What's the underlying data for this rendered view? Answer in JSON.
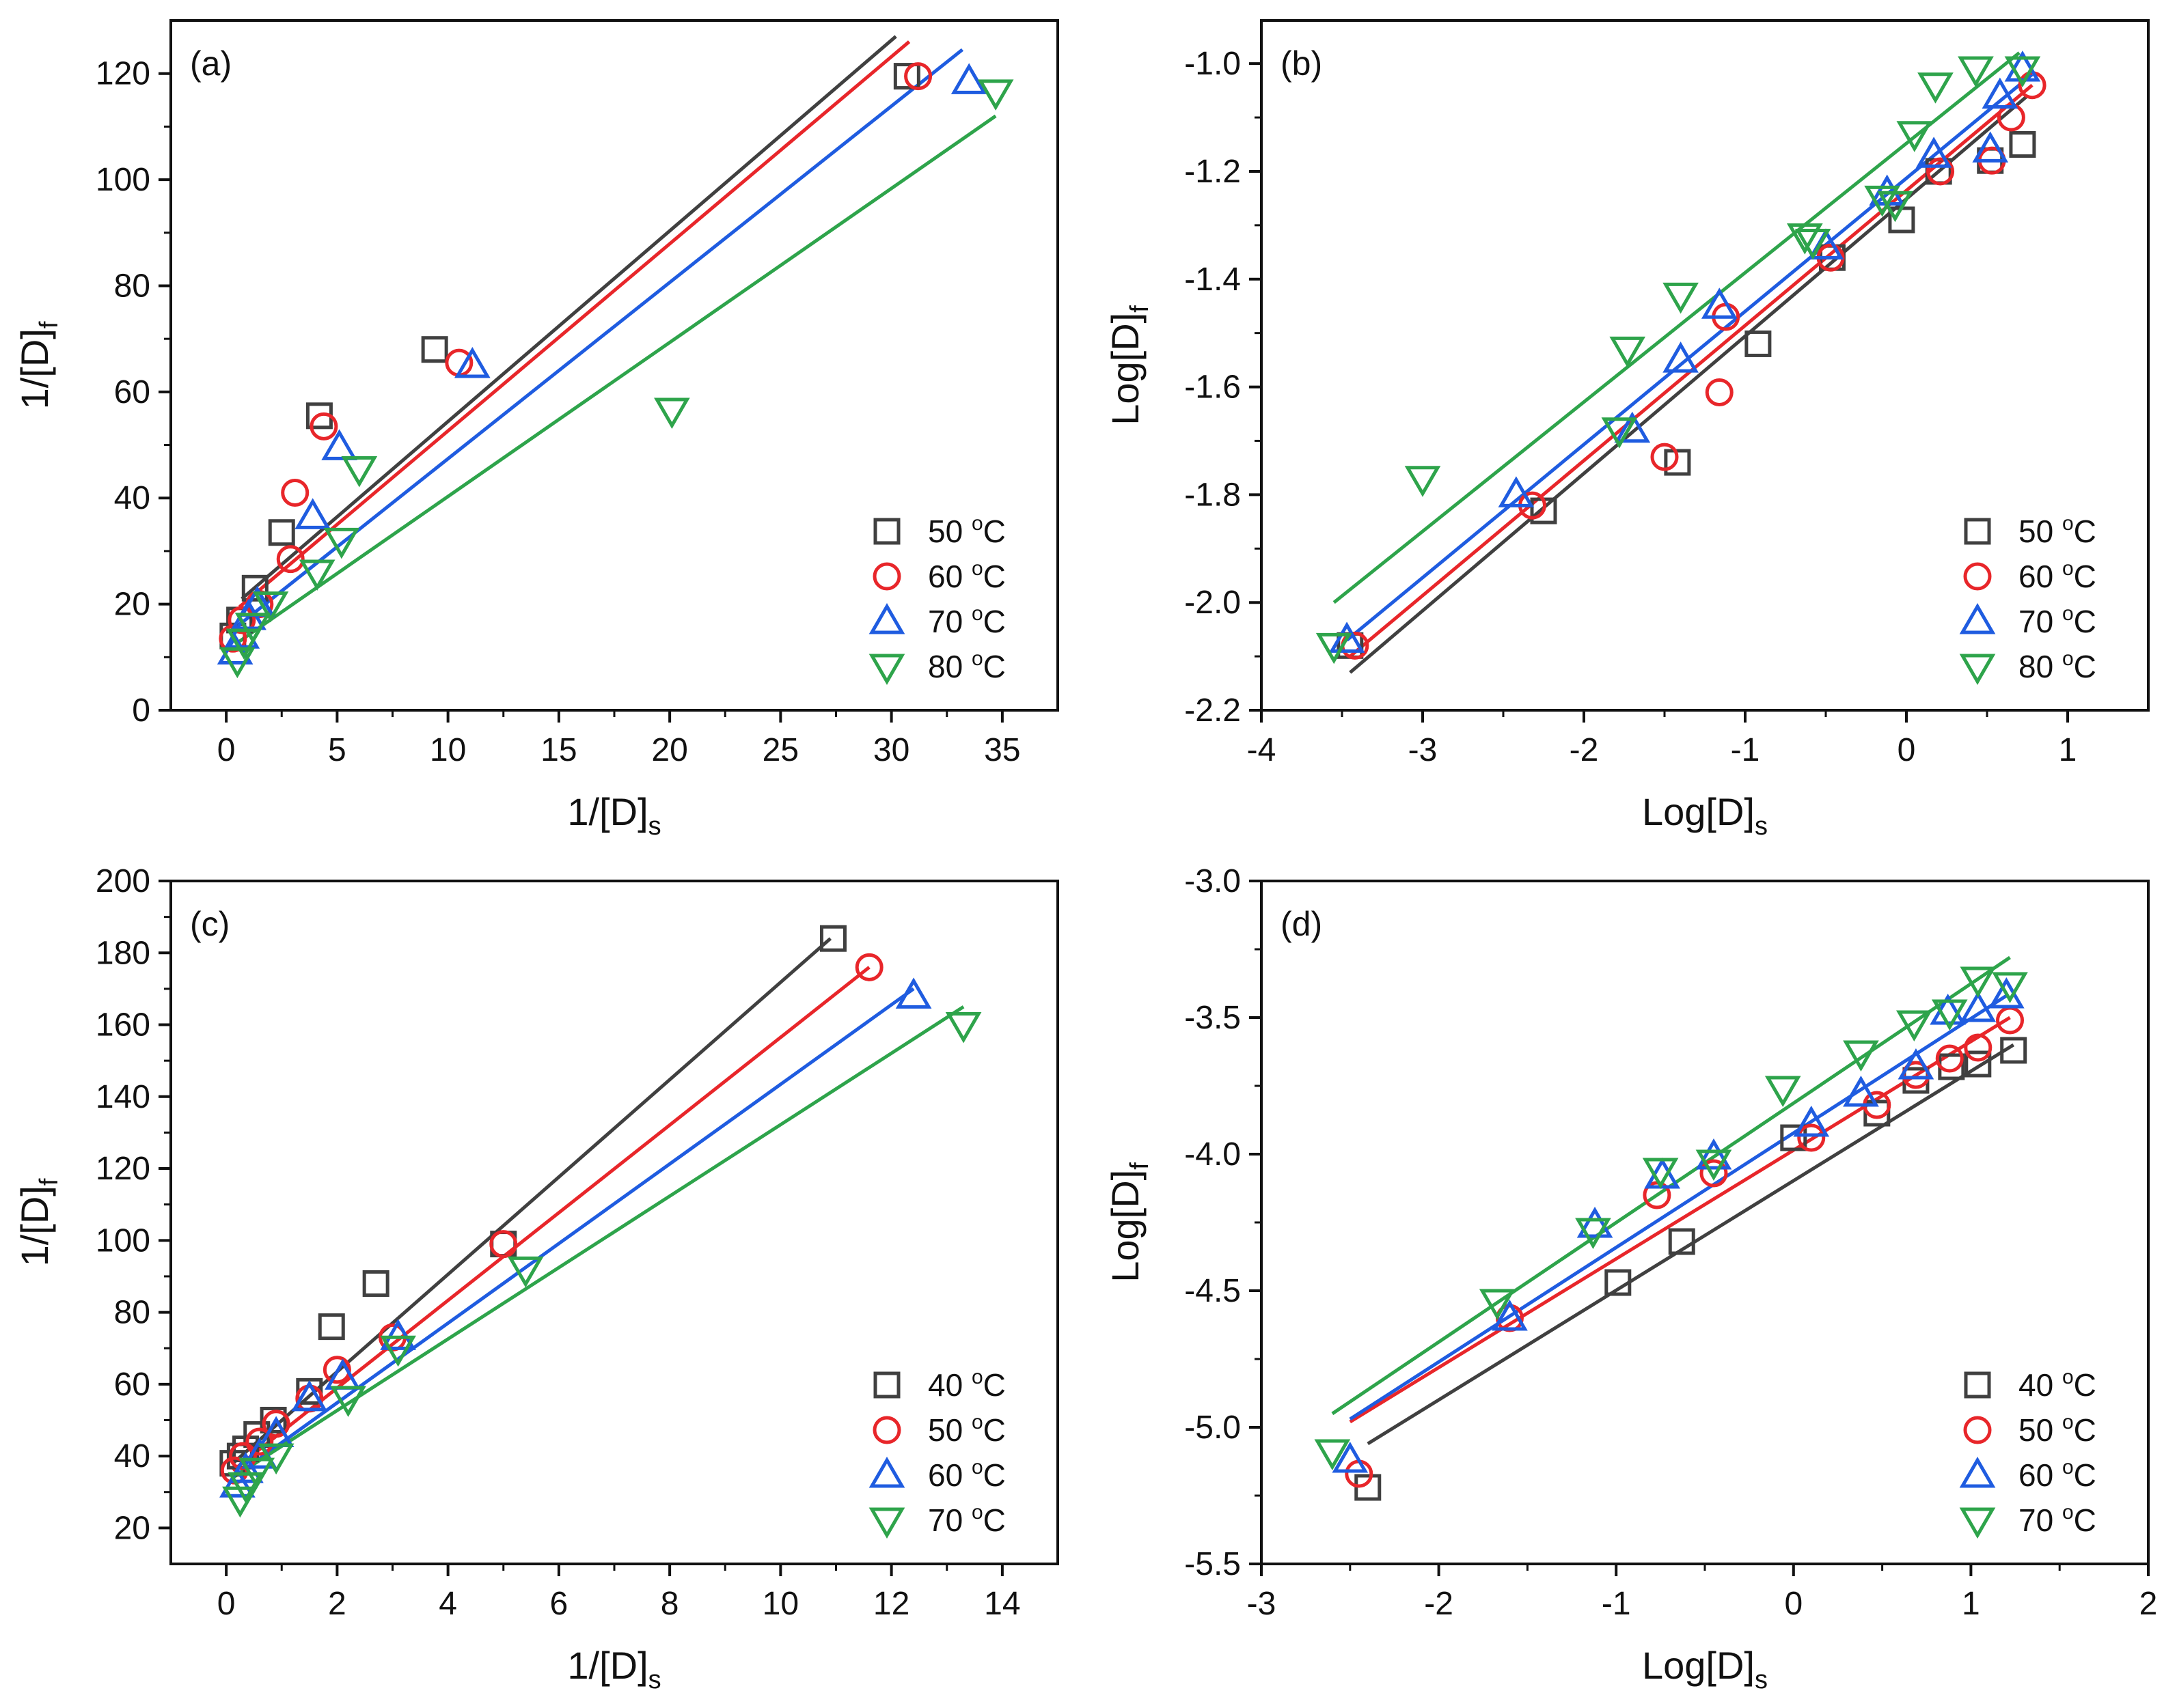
{
  "chart_data": [
    {
      "type": "scatter",
      "panel_label": "(a)",
      "xlabel": "1/[D]",
      "xlabel_sub": "s",
      "ylabel": "1/[D]",
      "ylabel_sub": "f",
      "xlim": [
        -2.5,
        37.5
      ],
      "ylim": [
        0,
        130
      ],
      "xticks": [
        0,
        5,
        10,
        15,
        20,
        25,
        30,
        35
      ],
      "yticks": [
        0,
        20,
        40,
        60,
        80,
        100,
        120
      ],
      "legend_position": "bottom-right",
      "series": [
        {
          "name": "50",
          "unit": "oC",
          "marker": "square",
          "color": "#404040",
          "x": [
            0.3,
            0.6,
            1.3,
            2.5,
            4.2,
            9.4,
            30.7
          ],
          "y": [
            14,
            17,
            23,
            33.5,
            55.5,
            68,
            119.5
          ],
          "fit": {
            "x": [
              0.7,
              30.2
            ],
            "y": [
              21,
              127
            ]
          }
        },
        {
          "name": "60",
          "unit": "oC",
          "marker": "circle",
          "color": "#e8262a",
          "x": [
            0.3,
            0.7,
            1.5,
            2.9,
            3.1,
            4.4,
            10.5,
            31.2
          ],
          "y": [
            13.5,
            17,
            20,
            28.5,
            41,
            53.5,
            65.5,
            119.5
          ],
          "fit": {
            "x": [
              0.6,
              30.8
            ],
            "y": [
              19.5,
              126
            ]
          }
        },
        {
          "name": "70",
          "unit": "oC",
          "marker": "triangle-up",
          "color": "#1f5ce0",
          "x": [
            0.4,
            0.7,
            1.0,
            1.4,
            3.9,
            5.1,
            11.1,
            33.5
          ],
          "y": [
            11,
            14,
            17.5,
            20,
            36.5,
            49.5,
            65,
            118.5
          ],
          "fit": {
            "x": [
              0.4,
              33.2
            ],
            "y": [
              15.5,
              124.5
            ]
          }
        },
        {
          "name": "80",
          "unit": "oC",
          "marker": "triangle-down",
          "color": "#2ea44b",
          "x": [
            0.5,
            0.8,
            1.2,
            2.0,
            4.1,
            5.2,
            6.0,
            20.1,
            34.7
          ],
          "y": [
            9.5,
            13,
            16,
            20,
            26,
            32,
            45.5,
            56.5,
            116.5
          ],
          "fit": {
            "x": [
              0.6,
              34.7
            ],
            "y": [
              13,
              112
            ]
          }
        }
      ]
    },
    {
      "type": "scatter",
      "panel_label": "(b)",
      "xlabel": "Log[D]",
      "xlabel_sub": "s",
      "ylabel": "Log[D]",
      "ylabel_sub": "f",
      "xlim": [
        -4,
        1.5
      ],
      "ylim": [
        -2.2,
        -0.92
      ],
      "xticks": [
        -4,
        -3,
        -2,
        -1,
        0,
        1
      ],
      "yticks": [
        -2.2,
        -2.0,
        -1.8,
        -1.6,
        -1.4,
        -1.2,
        -1.0
      ],
      "ytick_labels": [
        "-2.2",
        "-2.0",
        "-1.8",
        "-1.6",
        "-1.4",
        "-1.2",
        "-1.0"
      ],
      "legend_position": "bottom-right",
      "series": [
        {
          "name": "50",
          "unit": "oC",
          "marker": "square",
          "color": "#404040",
          "x": [
            -3.45,
            -2.25,
            -1.42,
            -0.92,
            -0.46,
            -0.03,
            0.2,
            0.52,
            0.72
          ],
          "y": [
            -2.08,
            -1.83,
            -1.74,
            -1.52,
            -1.36,
            -1.29,
            -1.2,
            -1.18,
            -1.15
          ],
          "fit": {
            "x": [
              -3.45,
              0.75
            ],
            "y": [
              -2.13,
              -1.06
            ]
          }
        },
        {
          "name": "60",
          "unit": "oC",
          "marker": "circle",
          "color": "#e8262a",
          "x": [
            -3.42,
            -2.32,
            -1.5,
            -1.16,
            -1.12,
            -0.47,
            0.21,
            0.53,
            0.65,
            0.78
          ],
          "y": [
            -2.08,
            -1.82,
            -1.73,
            -1.61,
            -1.47,
            -1.36,
            -1.2,
            -1.18,
            -1.1,
            -1.04
          ],
          "fit": {
            "x": [
              -3.45,
              0.78
            ],
            "y": [
              -2.1,
              -1.04
            ]
          }
        },
        {
          "name": "70",
          "unit": "oC",
          "marker": "triangle-up",
          "color": "#1f5ce0",
          "x": [
            -3.47,
            -2.42,
            -1.7,
            -1.4,
            -1.16,
            -0.5,
            -0.12,
            0.17,
            0.52,
            0.58,
            0.72
          ],
          "y": [
            -2.07,
            -1.8,
            -1.68,
            -1.55,
            -1.45,
            -1.34,
            -1.24,
            -1.17,
            -1.16,
            -1.06,
            -1.01
          ],
          "fit": {
            "x": [
              -3.47,
              0.78
            ],
            "y": [
              -2.07,
              -1.02
            ]
          }
        },
        {
          "name": "80",
          "unit": "oC",
          "marker": "triangle-down",
          "color": "#2ea44b",
          "x": [
            -3.55,
            -3.0,
            -1.78,
            -1.73,
            -1.4,
            -0.63,
            -0.58,
            -0.15,
            -0.07,
            0.05,
            0.18,
            0.43,
            0.72
          ],
          "y": [
            -2.08,
            -1.77,
            -1.68,
            -1.53,
            -1.43,
            -1.32,
            -1.33,
            -1.25,
            -1.26,
            -1.13,
            -1.04,
            -1.01,
            -1.01
          ],
          "fit": {
            "x": [
              -3.55,
              0.7
            ],
            "y": [
              -2.0,
              -0.98
            ]
          }
        }
      ]
    },
    {
      "type": "scatter",
      "panel_label": "(c)",
      "xlabel": "1/[D]",
      "xlabel_sub": "s",
      "ylabel": "1/[D]",
      "ylabel_sub": "f",
      "xlim": [
        -1,
        15
      ],
      "ylim": [
        10,
        200
      ],
      "xticks": [
        0,
        2,
        4,
        6,
        8,
        10,
        12,
        14
      ],
      "yticks": [
        20,
        40,
        60,
        80,
        100,
        120,
        140,
        160,
        180,
        200
      ],
      "legend_position": "bottom-right",
      "series": [
        {
          "name": "40",
          "unit": "oC",
          "marker": "square",
          "color": "#404040",
          "x": [
            0.12,
            0.25,
            0.35,
            0.55,
            0.85,
            1.5,
            1.9,
            2.7,
            5.0,
            10.95
          ],
          "y": [
            38,
            40,
            42,
            46,
            50,
            58,
            76,
            88,
            99,
            184
          ],
          "fit": {
            "x": [
              0.12,
              10.9
            ],
            "y": [
              38,
              184
            ]
          }
        },
        {
          "name": "50",
          "unit": "oC",
          "marker": "circle",
          "color": "#e8262a",
          "x": [
            0.15,
            0.3,
            0.6,
            0.9,
            1.5,
            2.0,
            3.0,
            5.0,
            11.6
          ],
          "y": [
            36,
            40,
            44,
            49,
            56,
            64,
            73,
            99,
            176
          ],
          "fit": {
            "x": [
              0.12,
              11.6
            ],
            "y": [
              36,
              176
            ]
          }
        },
        {
          "name": "60",
          "unit": "oC",
          "marker": "triangle-up",
          "color": "#1f5ce0",
          "x": [
            0.2,
            0.35,
            0.6,
            0.9,
            1.5,
            2.1,
            3.1,
            12.4
          ],
          "y": [
            32,
            36,
            40,
            46,
            56,
            62,
            73,
            168
          ],
          "fit": {
            "x": [
              0.12,
              12.4
            ],
            "y": [
              34,
              170
            ]
          }
        },
        {
          "name": "70",
          "unit": "oC",
          "marker": "triangle-down",
          "color": "#2ea44b",
          "x": [
            0.25,
            0.35,
            0.55,
            0.9,
            2.2,
            3.1,
            5.4,
            13.3
          ],
          "y": [
            28,
            32,
            36,
            40,
            56,
            70,
            92,
            160
          ],
          "fit": {
            "x": [
              0.12,
              13.3
            ],
            "y": [
              34,
              165
            ]
          }
        }
      ]
    },
    {
      "type": "scatter",
      "panel_label": "(d)",
      "xlabel": "Log[D]",
      "xlabel_sub": "s",
      "ylabel": "Log[D]",
      "ylabel_sub": "f",
      "xlim": [
        -3,
        2
      ],
      "ylim": [
        -5.5,
        -3.0
      ],
      "xticks": [
        -3,
        -2,
        -1,
        0,
        1,
        2
      ],
      "yticks": [
        -5.5,
        -5.0,
        -4.5,
        -4.0,
        -3.5,
        -3.0
      ],
      "ytick_labels": [
        "-5.5",
        "-5.0",
        "-4.5",
        "-4.0",
        "-3.5",
        "-3.0"
      ],
      "legend_position": "bottom-right",
      "series": [
        {
          "name": "40",
          "unit": "oC",
          "marker": "square",
          "color": "#404040",
          "x": [
            -2.4,
            -0.99,
            -0.63,
            0.0,
            0.47,
            0.69,
            0.89,
            1.04,
            1.24
          ],
          "y": [
            -5.22,
            -4.47,
            -4.32,
            -3.94,
            -3.85,
            -3.73,
            -3.68,
            -3.67,
            -3.62
          ],
          "fit": {
            "x": [
              -2.4,
              1.24
            ],
            "y": [
              -5.06,
              -3.6
            ]
          }
        },
        {
          "name": "50",
          "unit": "oC",
          "marker": "circle",
          "color": "#e8262a",
          "x": [
            -2.45,
            -1.6,
            -0.77,
            -0.45,
            0.1,
            0.47,
            0.69,
            0.88,
            1.04,
            1.22
          ],
          "y": [
            -5.17,
            -4.6,
            -4.15,
            -4.07,
            -3.94,
            -3.82,
            -3.71,
            -3.65,
            -3.61,
            -3.51
          ],
          "fit": {
            "x": [
              -2.5,
              1.22
            ],
            "y": [
              -4.98,
              -3.5
            ]
          }
        },
        {
          "name": "60",
          "unit": "oC",
          "marker": "triangle-up",
          "color": "#1f5ce0",
          "x": [
            -2.5,
            -1.6,
            -1.12,
            -0.74,
            -0.45,
            0.1,
            0.38,
            0.69,
            0.87,
            1.04,
            1.2
          ],
          "y": [
            -5.12,
            -4.6,
            -4.26,
            -4.08,
            -4.01,
            -3.89,
            -3.78,
            -3.68,
            -3.48,
            -3.47,
            -3.42
          ],
          "fit": {
            "x": [
              -2.5,
              1.2
            ],
            "y": [
              -4.97,
              -3.42
            ]
          }
        },
        {
          "name": "70",
          "unit": "oC",
          "marker": "triangle-down",
          "color": "#2ea44b",
          "x": [
            -2.6,
            -1.67,
            -1.13,
            -0.75,
            -0.45,
            -0.06,
            0.38,
            0.68,
            0.88,
            1.04,
            1.22
          ],
          "y": [
            -5.09,
            -4.54,
            -4.28,
            -4.06,
            -4.03,
            -3.76,
            -3.63,
            -3.52,
            -3.48,
            -3.36,
            -3.38
          ],
          "fit": {
            "x": [
              -2.6,
              1.22
            ],
            "y": [
              -4.95,
              -3.28
            ]
          }
        }
      ]
    }
  ]
}
